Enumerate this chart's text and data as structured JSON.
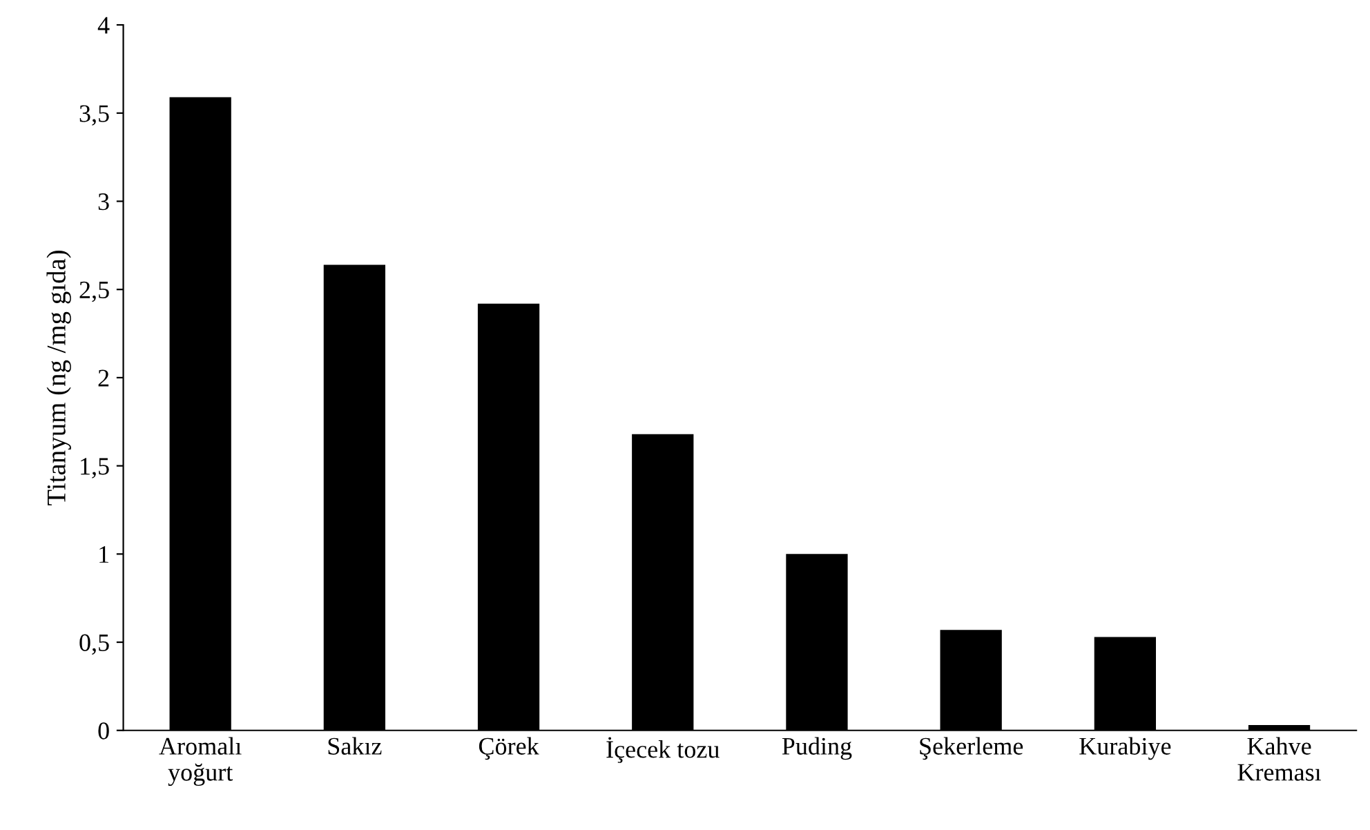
{
  "chart_data": {
    "type": "bar",
    "ylabel": "Titanyum (ng /mg gıda)",
    "categories": [
      "Aromalı\nyoğurt",
      "Sakız",
      "Çörek",
      "İçecek tozu",
      "Puding",
      "Şekerleme",
      "Kurabiye",
      "Kahve\nKreması"
    ],
    "values": [
      3.59,
      2.64,
      2.42,
      1.68,
      1.0,
      0.57,
      0.53,
      0.03
    ],
    "color": "#000000",
    "ylim": [
      0,
      4
    ],
    "yticks": [
      0,
      {
        "value": 0.5,
        "label": "0,5"
      },
      1,
      {
        "value": 1.5,
        "label": "1,5"
      },
      2,
      {
        "value": 2.5,
        "label": "2,5"
      },
      3,
      {
        "value": 3.5,
        "label": "3,5"
      },
      4
    ],
    "grid": false
  }
}
